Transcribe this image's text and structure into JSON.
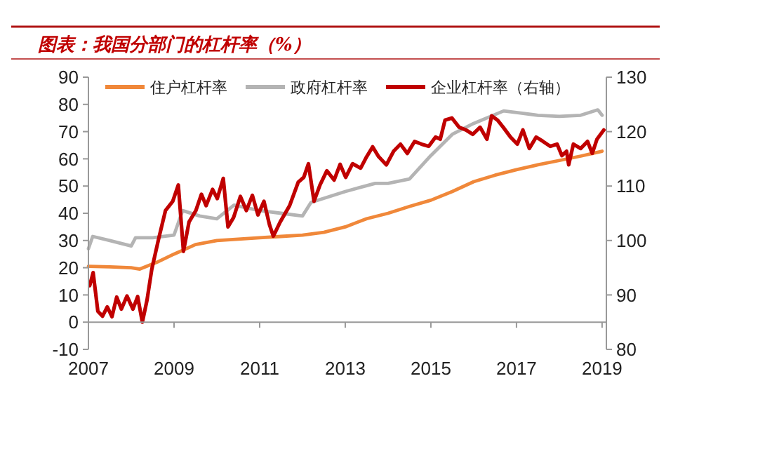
{
  "chart_data": {
    "type": "line",
    "title": "图表：我国分部门的杠杆率（%）",
    "xlim": [
      2007,
      2019.1
    ],
    "xticks": [
      2007,
      2009,
      2011,
      2013,
      2015,
      2017,
      2019
    ],
    "ylim": [
      -10,
      90
    ],
    "yticks": [
      -10,
      0,
      10,
      20,
      30,
      40,
      50,
      60,
      70,
      80,
      90
    ],
    "y2lim": [
      80,
      130
    ],
    "y2ticks": [
      80,
      90,
      100,
      110,
      120,
      130
    ],
    "grid": false,
    "legend": "top",
    "line_style": "solid",
    "marker": "none",
    "series": [
      {
        "name": "住户杠杆率",
        "color": "#f0883a",
        "x": [
          2007,
          2007.5,
          2008,
          2008.2,
          2008.6,
          2009,
          2009.5,
          2010,
          2010.5,
          2011,
          2011.5,
          2012,
          2012.5,
          2013,
          2013.5,
          2014,
          2014.5,
          2015,
          2015.5,
          2016,
          2016.5,
          2017,
          2017.5,
          2018,
          2018.5,
          2019
        ],
        "values": [
          20.5,
          20.3,
          20,
          19.5,
          22,
          25,
          28.5,
          30,
          30.5,
          31,
          31.5,
          32,
          33,
          35,
          38,
          40,
          42.5,
          44.8,
          48,
          51.6,
          54,
          56,
          57.8,
          59.4,
          61,
          62.8
        ]
      },
      {
        "name": "政府杠杆率",
        "color": "#b4b4b4",
        "x": [
          2007,
          2007.1,
          2007.5,
          2008,
          2008.1,
          2008.5,
          2009,
          2009.2,
          2009.6,
          2010,
          2010.4,
          2011,
          2011.5,
          2012,
          2012.2,
          2012.6,
          2013,
          2013.7,
          2014,
          2014.5,
          2015,
          2015.5,
          2016,
          2016.7,
          2017,
          2017.5,
          2018,
          2018.5,
          2018.9,
          2019
        ],
        "values": [
          27,
          31.5,
          30,
          28,
          31,
          31,
          32,
          41,
          39,
          38,
          43,
          41,
          40,
          39,
          44,
          46,
          48,
          51,
          51,
          52.6,
          61.2,
          69,
          73,
          77.6,
          77,
          76,
          75.6,
          76,
          78,
          76
        ]
      },
      {
        "name": "企业杠杆率（右轴）",
        "color": "#c00000",
        "axis": "y2",
        "x": [
          2007.03,
          2007.11,
          2007.22,
          2007.33,
          2007.44,
          2007.55,
          2007.66,
          2007.77,
          2007.9,
          2008.04,
          2008.15,
          2008.26,
          2008.37,
          2008.48,
          2008.64,
          2008.8,
          2008.97,
          2009.1,
          2009.22,
          2009.35,
          2009.51,
          2009.64,
          2009.75,
          2009.9,
          2010.01,
          2010.15,
          2010.26,
          2010.39,
          2010.55,
          2010.69,
          2010.83,
          2010.96,
          2011.1,
          2011.23,
          2011.32,
          2011.48,
          2011.7,
          2011.9,
          2012.03,
          2012.14,
          2012.27,
          2012.41,
          2012.57,
          2012.74,
          2012.88,
          2013.01,
          2013.17,
          2013.36,
          2013.5,
          2013.64,
          2013.78,
          2013.96,
          2014.13,
          2014.29,
          2014.45,
          2014.62,
          2014.78,
          2014.95,
          2015.11,
          2015.22,
          2015.33,
          2015.49,
          2015.66,
          2015.82,
          2015.98,
          2016.15,
          2016.31,
          2016.42,
          2016.56,
          2016.69,
          2016.86,
          2017.02,
          2017.15,
          2017.3,
          2017.46,
          2017.62,
          2017.79,
          2017.95,
          2018.06,
          2018.17,
          2018.22,
          2018.33,
          2018.5,
          2018.66,
          2018.77,
          2018.88,
          2019.04
        ],
        "values": [
          91.7,
          94.1,
          87,
          86.1,
          87.8,
          86,
          89.6,
          87.4,
          89.8,
          87.4,
          89.7,
          85,
          89.1,
          94.7,
          100.3,
          105.5,
          107.2,
          110.2,
          98,
          103.4,
          105.5,
          108.5,
          106.4,
          109.4,
          107.7,
          111.4,
          102.5,
          104.2,
          108.1,
          105.5,
          108.3,
          104.7,
          107.2,
          102.9,
          100.8,
          103.4,
          106.4,
          110.7,
          111.6,
          114.1,
          107.2,
          110.2,
          112.8,
          111.1,
          114,
          111.6,
          114.1,
          113.3,
          115.4,
          117.2,
          115.4,
          113.9,
          116.4,
          117.7,
          116,
          118.2,
          117.7,
          117.3,
          119,
          118.6,
          122.1,
          122.5,
          120.8,
          120.3,
          119.5,
          120.8,
          118.6,
          122.9,
          122.1,
          120.8,
          119,
          117.7,
          120.3,
          116.9,
          119,
          118.2,
          117.3,
          117.7,
          115.6,
          116.4,
          113.9,
          117.7,
          116.9,
          118.2,
          116,
          118.6,
          120.3
        ]
      }
    ]
  }
}
